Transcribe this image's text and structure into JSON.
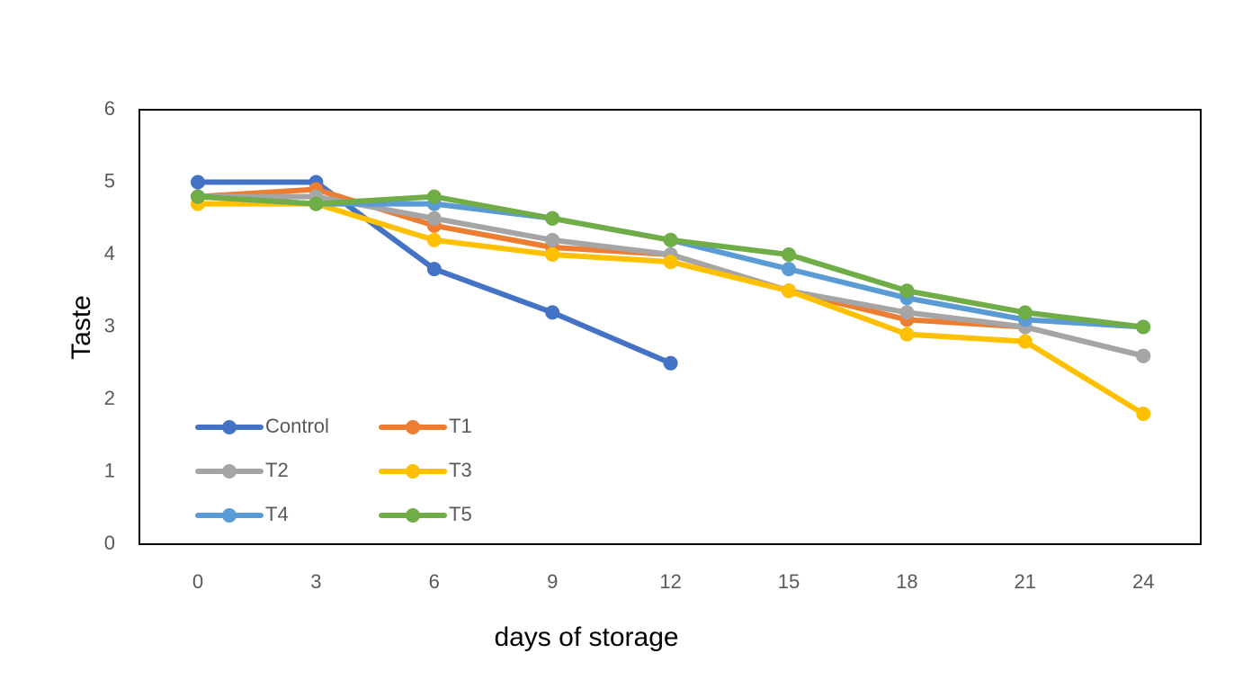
{
  "chart_data": {
    "type": "line",
    "title": "",
    "xlabel": "days of storage",
    "ylabel": "Taste",
    "x": [
      0,
      3,
      6,
      9,
      12,
      15,
      18,
      21,
      24
    ],
    "x_tick_labels": [
      "0",
      "3",
      "6",
      "9",
      "12",
      "15",
      "18",
      "21",
      "24"
    ],
    "ylim": [
      0,
      6
    ],
    "y_tick_labels": [
      "0",
      "1",
      "2",
      "3",
      "4",
      "5",
      "6"
    ],
    "grid": false,
    "legend_position": "bottom-left",
    "series": [
      {
        "name": "Control",
        "color": "#4472C4",
        "values": [
          5.0,
          5.0,
          3.8,
          3.2,
          2.5,
          null,
          null,
          null,
          null
        ]
      },
      {
        "name": "T1",
        "color": "#ED7D31",
        "values": [
          4.8,
          4.9,
          4.4,
          4.1,
          4.0,
          3.5,
          3.1,
          3.0,
          2.6
        ]
      },
      {
        "name": "T2",
        "color": "#A5A5A5",
        "values": [
          4.8,
          4.8,
          4.5,
          4.2,
          4.0,
          3.5,
          3.2,
          3.0,
          2.6
        ]
      },
      {
        "name": "T3",
        "color": "#FFC000",
        "values": [
          4.7,
          4.7,
          4.2,
          4.0,
          3.9,
          3.5,
          2.9,
          2.8,
          1.8
        ]
      },
      {
        "name": "T4",
        "color": "#5B9BD5",
        "values": [
          4.8,
          4.7,
          4.7,
          4.5,
          4.2,
          3.8,
          3.4,
          3.1,
          3.0
        ]
      },
      {
        "name": "T5",
        "color": "#70AD47",
        "values": [
          4.8,
          4.7,
          4.8,
          4.5,
          4.2,
          4.0,
          3.5,
          3.2,
          3.0
        ]
      }
    ]
  }
}
